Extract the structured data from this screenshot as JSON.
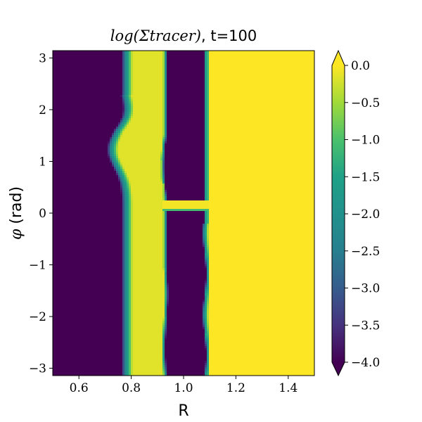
{
  "chart_data": {
    "type": "heatmap",
    "title_math": "log(Σtracer)",
    "title_rest": ", t=100",
    "xlabel": "R",
    "ylabel_symbol": "φ",
    "ylabel_rest": " (rad)",
    "xlim": [
      0.5,
      1.5
    ],
    "ylim": [
      -3.14159,
      3.14159
    ],
    "xticks": [
      {
        "value": 0.6,
        "label": "0.6"
      },
      {
        "value": 0.8,
        "label": "0.8"
      },
      {
        "value": 1.0,
        "label": "1.0"
      },
      {
        "value": 1.2,
        "label": "1.2"
      },
      {
        "value": 1.4,
        "label": "1.4"
      }
    ],
    "yticks": [
      {
        "value": 3,
        "label": "3"
      },
      {
        "value": 2,
        "label": "2"
      },
      {
        "value": 1,
        "label": "1"
      },
      {
        "value": 0,
        "label": "0"
      },
      {
        "value": -1,
        "label": "−1"
      },
      {
        "value": -2,
        "label": "−2"
      },
      {
        "value": -3,
        "label": "−3"
      }
    ],
    "colorbar": {
      "colormap": "viridis",
      "range": [
        -4.0,
        0.0
      ],
      "extend": "both",
      "ticks": [
        {
          "value": 0.0,
          "label": "0.0"
        },
        {
          "value": -0.5,
          "label": "−0.5"
        },
        {
          "value": -1.0,
          "label": "−1.0"
        },
        {
          "value": -1.5,
          "label": "−1.5"
        },
        {
          "value": -2.0,
          "label": "−2.0"
        },
        {
          "value": -2.5,
          "label": "−2.5"
        },
        {
          "value": -3.0,
          "label": "−3.0"
        },
        {
          "value": -3.5,
          "label": "−3.5"
        },
        {
          "value": -4.0,
          "label": "−4.0"
        }
      ]
    },
    "field": {
      "description_values": "log10 tracer surface density, clipped to [-4, 0]",
      "background_inner_value": -4.0,
      "background_outer_value": 0.0,
      "outer_region_start_R": 1.1,
      "gap_region_R": [
        0.93,
        1.08
      ],
      "ring_region_R": [
        0.78,
        0.93
      ],
      "bridge_phi": 0.15,
      "planet_phi": 0.15
    }
  }
}
